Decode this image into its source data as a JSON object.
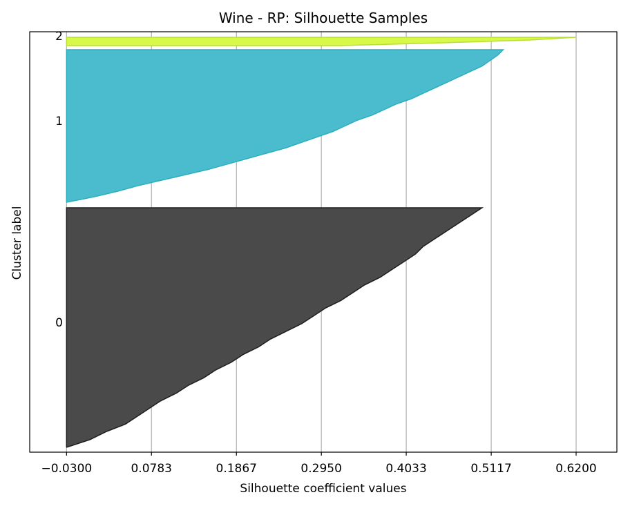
{
  "chart_data": {
    "type": "area",
    "title": "Wine - RP: Silhouette Samples",
    "xlabel": "Silhouette coefficient values",
    "ylabel": "Cluster label",
    "xlim": [
      -0.077,
      0.672
    ],
    "ylim": [
      0,
      1
    ],
    "xticks": [
      -0.03,
      0.0783,
      0.1867,
      0.295,
      0.4033,
      0.5117,
      0.62
    ],
    "xtick_labels": [
      "−0.0300",
      "0.0783",
      "0.1867",
      "0.2950",
      "0.4033",
      "0.5117",
      "0.6200"
    ],
    "ytick_labels": [
      "0",
      "1",
      "2"
    ],
    "grid": "vertical lines at x ticks",
    "clusters": [
      {
        "label": "0",
        "color": "#4a4a4a",
        "edge_color": "#1e1e1e",
        "sorted_values": [
          -0.03,
          0.0,
          0.02,
          0.045,
          0.06,
          0.075,
          0.09,
          0.11,
          0.125,
          0.145,
          0.16,
          0.18,
          0.195,
          0.215,
          0.23,
          0.25,
          0.27,
          0.285,
          0.3,
          0.32,
          0.335,
          0.35,
          0.37,
          0.385,
          0.4,
          0.415,
          0.425,
          0.44,
          0.455,
          0.47,
          0.485,
          0.5
        ]
      },
      {
        "label": "1",
        "color": "#4bbccd",
        "edge_color": "#2aaec0",
        "sorted_values": [
          -0.03,
          0.005,
          0.035,
          0.06,
          0.09,
          0.12,
          0.15,
          0.175,
          0.2,
          0.225,
          0.25,
          0.27,
          0.29,
          0.31,
          0.325,
          0.34,
          0.36,
          0.375,
          0.39,
          0.41,
          0.425,
          0.44,
          0.455,
          0.47,
          0.485,
          0.5,
          0.51,
          0.52,
          0.527
        ]
      },
      {
        "label": "2",
        "color": "#d8f84a",
        "edge_color": "#b8e030",
        "sorted_values": [
          0.32,
          0.45,
          0.56,
          0.62
        ]
      }
    ]
  }
}
